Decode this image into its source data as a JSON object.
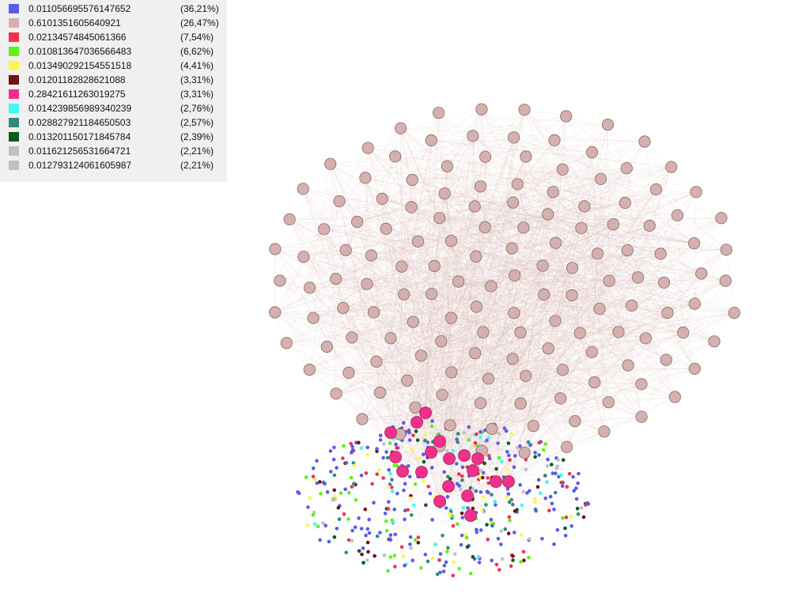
{
  "legend": {
    "items": [
      {
        "label": "0.011056695576147652",
        "percent": "(36,21%)",
        "color": "#5a5ce6"
      },
      {
        "label": "0.6101351605640921",
        "percent": "(26,47%)",
        "color": "#d4b1ae"
      },
      {
        "label": "0.02134574845061366",
        "percent": "(7,54%)",
        "color": "#f5304a"
      },
      {
        "label": "0.010813647036566483",
        "percent": "(6,62%)",
        "color": "#5cf21a"
      },
      {
        "label": "0.013490292154551518",
        "percent": "(4,41%)",
        "color": "#f8f84a"
      },
      {
        "label": "0.01201182828621088",
        "percent": "(3,31%)",
        "color": "#6e1212"
      },
      {
        "label": "0.28421611263019275",
        "percent": "(3,31%)",
        "color": "#f0308a"
      },
      {
        "label": "0.014239856989340239",
        "percent": "(2,76%)",
        "color": "#40f8f4"
      },
      {
        "label": "0.02882792118465050​3",
        "percent": "(2,57%)",
        "color": "#2e8c7a"
      },
      {
        "label": "0.013201150171845784",
        "percent": "(2,39%)",
        "color": "#0a5a1e"
      },
      {
        "label": "0.011621256531664721",
        "percent": "(2,21%)",
        "color": "#c0c0c0"
      },
      {
        "label": "0.012793124061605987",
        "percent": "(2,21%)",
        "color": "#c0c0c0"
      }
    ]
  },
  "graph": {
    "edge_color": "#d9b6b4",
    "node_stroke": "#8a6a68"
  }
}
